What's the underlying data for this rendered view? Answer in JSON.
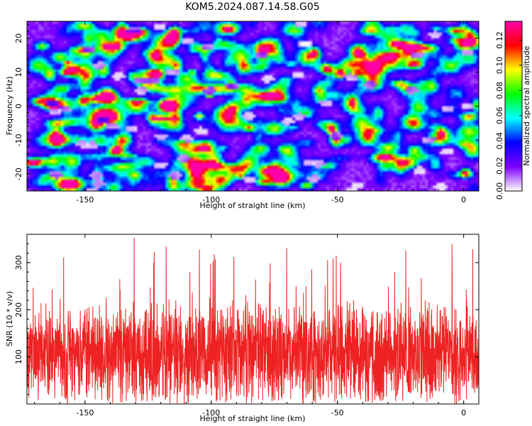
{
  "title": "KOM5.2024.087.14.58.G05",
  "chart_data": [
    {
      "type": "heatmap",
      "xlabel": "Height of straight line (km)",
      "ylabel": "Frequency (Hz)",
      "xlim": [
        -173,
        6
      ],
      "ylim": [
        -25,
        25
      ],
      "xticks": [
        -150,
        -100,
        -50,
        0
      ],
      "yticks": [
        -20,
        -10,
        0,
        10,
        20
      ],
      "colorbar": {
        "label": "Normalized spectral amplitude",
        "range": [
          0,
          0.135
        ],
        "ticks": [
          "0.00",
          "0.02",
          "0.04",
          "0.06",
          "0.08",
          "0.10",
          "0.12"
        ],
        "colormap": [
          "#ffffff",
          "#7f00ff",
          "#0000ff",
          "#00ffff",
          "#00ff00",
          "#ffff00",
          "#ff0000",
          "#ff00aa"
        ]
      },
      "background_level": 0.02,
      "peak_values": [
        0.13,
        0.12,
        0.11,
        0.1,
        0.1,
        0.09
      ]
    },
    {
      "type": "line",
      "xlabel": "Height of straight line (km)",
      "ylabel": "SNR (10 * v/v)",
      "xlim": [
        -173,
        6
      ],
      "ylim": [
        0,
        360
      ],
      "xticks": [
        -150,
        -100,
        -50,
        0
      ],
      "yticks": [
        100,
        200,
        300
      ],
      "series_color": "#ee2222",
      "mean_value": 110,
      "typical_range": [
        20,
        230
      ],
      "max_value": 360
    }
  ]
}
